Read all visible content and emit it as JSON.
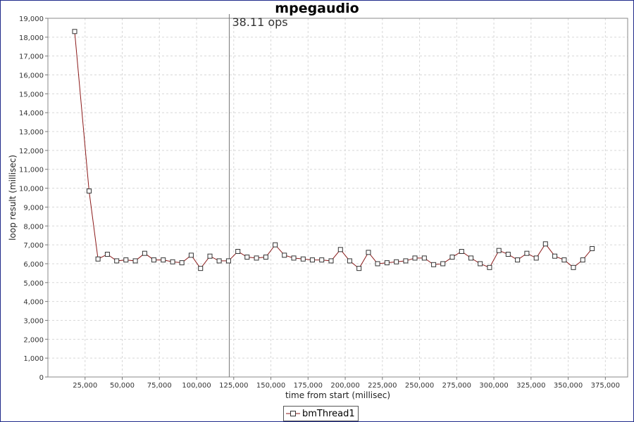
{
  "chart_data": {
    "type": "line",
    "title": "mpegaudio",
    "xlabel": "time from start (millisec)",
    "ylabel": "loop result (millisec)",
    "xlim": [
      0,
      390000
    ],
    "ylim": [
      0,
      19000
    ],
    "x_ticks": [
      25000,
      50000,
      75000,
      100000,
      125000,
      150000,
      175000,
      200000,
      225000,
      250000,
      275000,
      300000,
      325000,
      350000,
      375000
    ],
    "y_ticks": [
      0,
      1000,
      2000,
      3000,
      4000,
      5000,
      6000,
      7000,
      8000,
      9000,
      10000,
      11000,
      12000,
      13000,
      14000,
      15000,
      16000,
      17000,
      18000,
      19000
    ],
    "grid": true,
    "legend_position": "bottom-center",
    "marker": {
      "x": 122000,
      "label": "38.11 ops"
    },
    "series": [
      {
        "name": "bmThread1",
        "color": "#8b1a1a",
        "x": [
          18000,
          27700,
          33700,
          40000,
          46300,
          52500,
          58800,
          65100,
          71300,
          77600,
          83900,
          90100,
          96400,
          102700,
          109000,
          115200,
          121500,
          127800,
          134000,
          140300,
          146600,
          152900,
          159100,
          165400,
          171700,
          177900,
          184200,
          190500,
          196800,
          203000,
          209300,
          215600,
          221800,
          228100,
          234400,
          240700,
          246900,
          253200,
          259500,
          265700,
          272000,
          278300,
          284600,
          290800,
          297100,
          303400,
          309600,
          315900,
          322200,
          328500,
          334700,
          341000,
          347300,
          353500,
          359800,
          366100
        ],
        "y": [
          18300,
          9850,
          6250,
          6500,
          6150,
          6200,
          6150,
          6550,
          6200,
          6200,
          6100,
          6050,
          6450,
          5750,
          6400,
          6150,
          6150,
          6650,
          6350,
          6300,
          6350,
          7000,
          6450,
          6300,
          6250,
          6200,
          6200,
          6150,
          6750,
          6150,
          5750,
          6600,
          6000,
          6050,
          6100,
          6150,
          6300,
          6300,
          5950,
          6000,
          6350,
          6650,
          6300,
          6000,
          5800,
          6700,
          6500,
          6200,
          6550,
          6300,
          7050,
          6400,
          6200,
          5800,
          6200,
          6800
        ]
      }
    ]
  }
}
